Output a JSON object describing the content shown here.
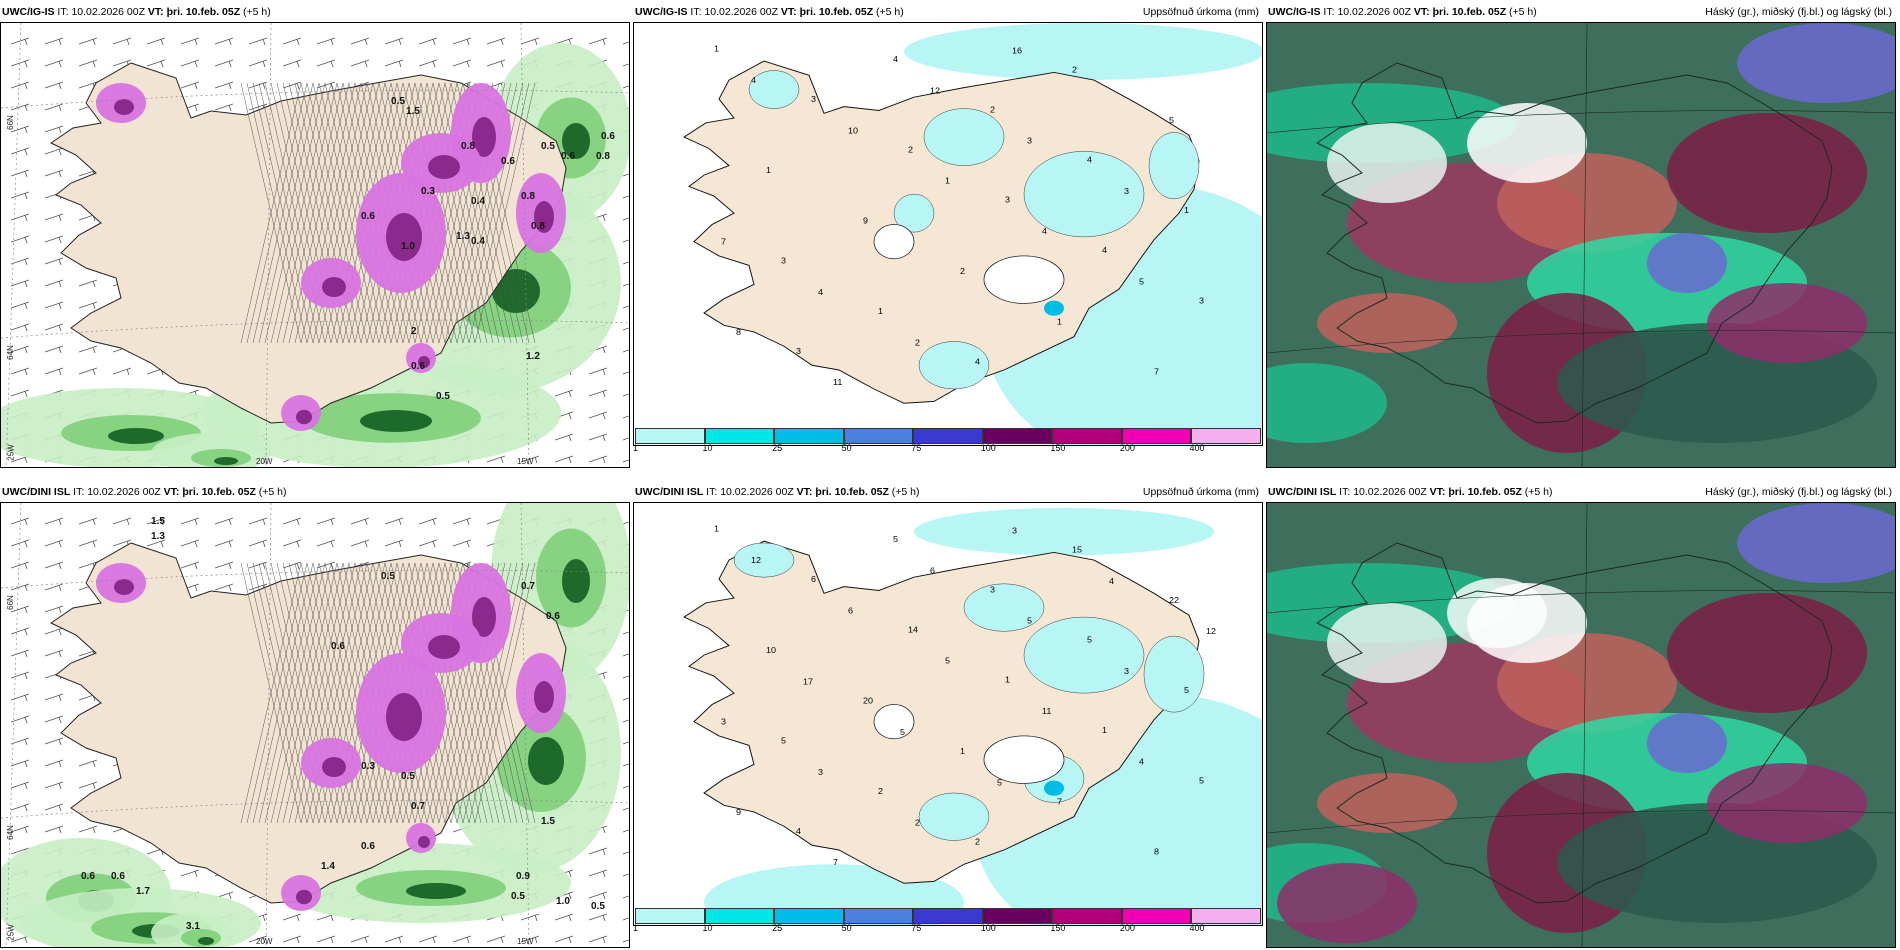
{
  "panels": [
    {
      "model": "UWC/IG-IS",
      "run_prefix": "IT:",
      "run": "10.02.2026 00Z",
      "vt_prefix": "VT:",
      "vt": "þri. 10.feb. 05Z",
      "lead": "(+5 h)",
      "title_right": "",
      "type": "pressure"
    },
    {
      "model": "UWC/IG-IS",
      "run_prefix": "IT:",
      "run": "10.02.2026 00Z",
      "vt_prefix": "VT:",
      "vt": "þri. 10.feb. 05Z",
      "lead": "(+5 h)",
      "title_right": "Uppsöfnuð úrkoma (mm)",
      "type": "precip"
    },
    {
      "model": "UWC/IG-IS",
      "run_prefix": "IT:",
      "run": "10.02.2026 00Z",
      "vt_prefix": "VT:",
      "vt": "þri. 10.feb. 05Z",
      "lead": "(+5 h)",
      "title_right": "Háský (gr.), miðský (fj.bl.) og lágský (bl.)",
      "type": "cloud"
    },
    {
      "model": "UWC/DINI ISL",
      "run_prefix": "IT:",
      "run": "10.02.2026 00Z",
      "vt_prefix": "VT:",
      "vt": "þri. 10.feb. 05Z",
      "lead": "(+5 h)",
      "title_right": "",
      "type": "pressure"
    },
    {
      "model": "UWC/DINI ISL",
      "run_prefix": "IT:",
      "run": "10.02.2026 00Z",
      "vt_prefix": "VT:",
      "vt": "þri. 10.feb. 05Z",
      "lead": "(+5 h)",
      "title_right": "Uppsöfnuð úrkoma (mm)",
      "type": "precip"
    },
    {
      "model": "UWC/DINI ISL",
      "run_prefix": "IT:",
      "run": "10.02.2026 00Z",
      "vt_prefix": "VT:",
      "vt": "þri. 10.feb. 05Z",
      "lead": "(+5 h)",
      "title_right": "Háský (gr.), miðský (fj.bl.) og lágský (bl.)",
      "type": "cloud"
    }
  ],
  "axis_labels": {
    "lat_66": "66N",
    "lat_64": "64N",
    "lon_25": "25W",
    "lon_20": "20W",
    "lon_15": "15W"
  },
  "colorbar": {
    "ticks": [
      "1",
      "10",
      "25",
      "50",
      "75",
      "100",
      "150",
      "200",
      "400"
    ],
    "colors": [
      "#b8f6f6",
      "#00e7e7",
      "#00bde6",
      "#4a7fe0",
      "#3a3ad0",
      "#6a0060",
      "#b0007a",
      "#f000b0",
      "#f6b0f0"
    ]
  },
  "precip_labels_top": [
    "1",
    "3",
    "2",
    "3",
    "4",
    "3",
    "3",
    "4",
    "2",
    "4",
    "1",
    "3",
    "1",
    "4",
    "2",
    "5",
    "1",
    "9",
    "2",
    "1",
    "7",
    "4",
    "10",
    "1",
    "4",
    "5",
    "8",
    "11",
    "12",
    "3",
    "3",
    "7",
    "4",
    "2",
    "16"
  ],
  "precip_labels_bottom": [
    "1",
    "6",
    "14",
    "1",
    "1",
    "5",
    "4",
    "5",
    "3",
    "5",
    "5",
    "5",
    "2",
    "2",
    "15",
    "22",
    "10",
    "20",
    "1",
    "7",
    "8",
    "12",
    "6",
    "5",
    "11",
    "4",
    "9",
    "7",
    "6",
    "5",
    "3",
    "3",
    "3",
    "2",
    "3",
    "4",
    "12",
    "17",
    "5",
    "5"
  ],
  "pressure_labels_top": [
    "0.5",
    "0.6",
    "0.3",
    "0.4",
    "1.3",
    "1.0",
    "0.8",
    "0.6",
    "0.5",
    "0.6",
    "0.8",
    "0.4",
    "0.8",
    "0.8",
    "0.6",
    "1.2",
    "0.6",
    "0.5",
    "1.5",
    "2"
  ],
  "pressure_labels_bottom": [
    "1.5",
    "1.3",
    "0.5",
    "0.6",
    "0.7",
    "0.6",
    "0.5",
    "0.7",
    "0.6",
    "3.1",
    "0.6",
    "1.5",
    "0.5",
    "1.0",
    "0.9",
    "0.5",
    "0.6",
    "0.3",
    "1.4",
    "1.7"
  ]
}
